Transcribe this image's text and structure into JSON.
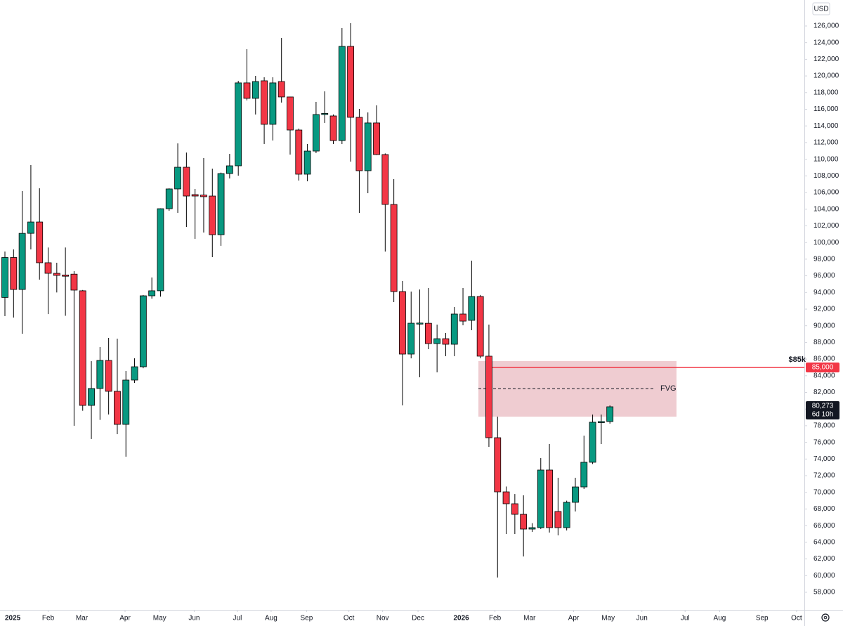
{
  "chart_data": {
    "type": "candlestick",
    "currency": "USD",
    "up_color": "#089981",
    "down_color": "#f23645",
    "x": [
      0,
      1,
      2,
      3,
      4,
      5,
      6,
      7,
      8,
      9,
      10,
      11,
      12,
      13,
      14,
      15,
      16,
      17,
      18,
      19,
      20,
      21,
      22,
      23,
      24,
      25,
      26,
      27,
      28,
      29,
      30,
      31,
      32,
      33,
      34,
      35,
      36,
      37,
      38,
      39,
      40,
      41,
      42,
      43,
      44,
      45,
      46,
      47,
      48,
      49,
      50,
      51,
      52,
      53,
      54,
      55,
      56,
      57,
      58,
      59,
      60,
      61,
      62,
      63,
      64,
      65,
      66,
      67,
      68,
      69,
      70
    ],
    "open": [
      93400,
      98200,
      94360,
      101100,
      102460,
      97570,
      96300,
      96100,
      96200,
      94200,
      80440,
      82470,
      85840,
      82130,
      78160,
      83480,
      85080,
      93600,
      94200,
      104060,
      106430,
      109040,
      105750,
      105700,
      105580,
      100940,
      108280,
      109210,
      119170,
      117310,
      119420,
      114190,
      119330,
      117480,
      113510,
      108200,
      110980,
      115370,
      115200,
      112240,
      123550,
      115030,
      108620,
      114360,
      110560,
      104570,
      94110,
      86600,
      90250,
      90300,
      87860,
      88450,
      87780,
      91410,
      90650,
      93520,
      86350,
      76560,
      70060,
      68630,
      67360,
      65590,
      65760,
      72680,
      67700,
      65760,
      68800,
      70650,
      73610,
      78400,
      78500
    ],
    "high": [
      98920,
      99170,
      106170,
      109300,
      106510,
      99400,
      97570,
      99400,
      96550,
      94300,
      85750,
      87440,
      88540,
      88460,
      84570,
      86100,
      93700,
      95800,
      104100,
      106500,
      111900,
      110800,
      106430,
      110140,
      108870,
      108400,
      110640,
      119420,
      123220,
      120010,
      119840,
      119840,
      124560,
      117500,
      113680,
      111830,
      116890,
      118150,
      115370,
      125750,
      126340,
      116040,
      115620,
      116470,
      110700,
      107610,
      95370,
      94110,
      94360,
      94530,
      90140,
      89130,
      92250,
      94530,
      97820,
      93700,
      90140,
      79090,
      70700,
      69800,
      69640,
      66300,
      74110,
      75800,
      71750,
      69000,
      71750,
      76810,
      79340,
      79340,
      80440
    ],
    "low": [
      91160,
      90990,
      89050,
      99170,
      95540,
      91400,
      94000,
      91200,
      77990,
      79800,
      76400,
      78700,
      79350,
      76980,
      74280,
      83140,
      84900,
      93260,
      93500,
      103800,
      103560,
      101870,
      100440,
      101200,
      98240,
      99600,
      107690,
      108030,
      117060,
      115370,
      111830,
      112250,
      116800,
      110560,
      107440,
      107350,
      110730,
      114360,
      111830,
      111830,
      109720,
      103560,
      105920,
      110500,
      98920,
      92840,
      80440,
      86090,
      83820,
      87190,
      84410,
      86350,
      86350,
      90060,
      89470,
      86100,
      75460,
      59770,
      65000,
      65000,
      62300,
      65250,
      65600,
      65170,
      64830,
      65420,
      67700,
      70400,
      73400,
      75800,
      78250
    ],
    "close": [
      98200,
      94360,
      101100,
      102460,
      97570,
      96300,
      96050,
      95950,
      94280,
      80440,
      82470,
      85840,
      82130,
      78160,
      83480,
      85080,
      93600,
      94200,
      104060,
      106430,
      109040,
      105580,
      105580,
      105500,
      100940,
      108280,
      109210,
      119170,
      117310,
      119330,
      114190,
      119170,
      117480,
      113510,
      108200,
      110980,
      115370,
      115500,
      112240,
      123550,
      115030,
      108620,
      114360,
      110560,
      104570,
      94110,
      86600,
      90310,
      90330,
      87860,
      88450,
      87780,
      91410,
      90560,
      93520,
      86350,
      76560,
      70060,
      68630,
      67360,
      65590,
      65760,
      72680,
      65760,
      65760,
      68800,
      70650,
      73610,
      78420,
      78500,
      80273
    ],
    "xlim": [
      -0.57,
      92.5
    ],
    "xticks": [
      {
        "value": 0.9,
        "label": "2025"
      },
      {
        "value": 5.0,
        "label": "Feb"
      },
      {
        "value": 8.9,
        "label": "Mar"
      },
      {
        "value": 13.9,
        "label": "Apr"
      },
      {
        "value": 17.9,
        "label": "May"
      },
      {
        "value": 21.9,
        "label": "Jun"
      },
      {
        "value": 26.9,
        "label": "Jul"
      },
      {
        "value": 30.8,
        "label": "Aug"
      },
      {
        "value": 34.9,
        "label": "Sep"
      },
      {
        "value": 39.8,
        "label": "Oct"
      },
      {
        "value": 43.7,
        "label": "Nov"
      },
      {
        "value": 47.8,
        "label": "Dec"
      },
      {
        "value": 52.8,
        "label": "2026"
      },
      {
        "value": 56.7,
        "label": "Feb"
      },
      {
        "value": 60.7,
        "label": "Mar"
      },
      {
        "value": 65.8,
        "label": "Apr"
      },
      {
        "value": 69.8,
        "label": "May"
      },
      {
        "value": 73.7,
        "label": "Jun"
      },
      {
        "value": 78.7,
        "label": "Jul"
      },
      {
        "value": 82.7,
        "label": "Aug"
      },
      {
        "value": 87.6,
        "label": "Sep"
      },
      {
        "value": 91.6,
        "label": "Oct"
      }
    ],
    "ylim": [
      55890,
      129120
    ],
    "yticks": [
      {
        "value": 58000,
        "label": "58,000"
      },
      {
        "value": 60000,
        "label": "60,000"
      },
      {
        "value": 62000,
        "label": "62,000"
      },
      {
        "value": 64000,
        "label": "64,000"
      },
      {
        "value": 66000,
        "label": "66,000"
      },
      {
        "value": 68000,
        "label": "68,000"
      },
      {
        "value": 70000,
        "label": "70,000"
      },
      {
        "value": 72000,
        "label": "72,000"
      },
      {
        "value": 74000,
        "label": "74,000"
      },
      {
        "value": 76000,
        "label": "76,000"
      },
      {
        "value": 78000,
        "label": "78,000"
      },
      {
        "value": 80000,
        "label": "80,000"
      },
      {
        "value": 82000,
        "label": "82,000"
      },
      {
        "value": 84000,
        "label": "84,000"
      },
      {
        "value": 86000,
        "label": "86,000"
      },
      {
        "value": 88000,
        "label": "88,000"
      },
      {
        "value": 90000,
        "label": "90,000"
      },
      {
        "value": 92000,
        "label": "92,000"
      },
      {
        "value": 94000,
        "label": "94,000"
      },
      {
        "value": 96000,
        "label": "96,000"
      },
      {
        "value": 98000,
        "label": "98,000"
      },
      {
        "value": 100000,
        "label": "100,000"
      },
      {
        "value": 102000,
        "label": "102,000"
      },
      {
        "value": 104000,
        "label": "104,000"
      },
      {
        "value": 106000,
        "label": "106,000"
      },
      {
        "value": 108000,
        "label": "108,000"
      },
      {
        "value": 110000,
        "label": "110,000"
      },
      {
        "value": 112000,
        "label": "112,000"
      },
      {
        "value": 114000,
        "label": "114,000"
      },
      {
        "value": 116000,
        "label": "116,000"
      },
      {
        "value": 118000,
        "label": "118,000"
      },
      {
        "value": 120000,
        "label": "120,000"
      },
      {
        "value": 122000,
        "label": "122,000"
      },
      {
        "value": 124000,
        "label": "124,000"
      },
      {
        "value": 126000,
        "label": "126,000"
      }
    ],
    "zone": {
      "label": "FVG",
      "top": 85760,
      "bottom": 79090,
      "mid": 82460
    },
    "level": {
      "value": 85000,
      "label": "$85k",
      "axis_label": "85,000",
      "color": "#f23645"
    },
    "last_price": {
      "value": 80273,
      "label": "80,273",
      "countdown": "6d 10h"
    }
  }
}
